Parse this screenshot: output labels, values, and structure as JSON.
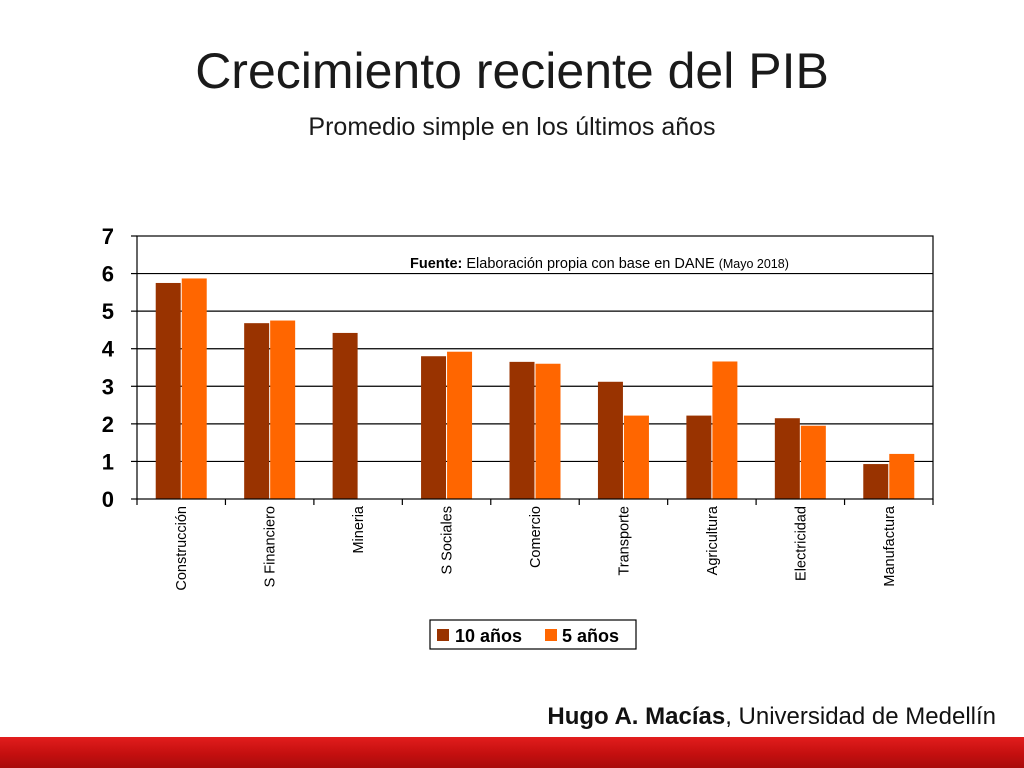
{
  "slide": {
    "title": "Crecimiento reciente del PIB",
    "subtitle": "Promedio simple en los últimos años",
    "footer_author": "Hugo A. Macías",
    "footer_affiliation": ", Universidad de Medellín"
  },
  "colors": {
    "series_10": "#993300",
    "series_5": "#ff6600",
    "bottom_bar": "#d61616"
  },
  "chart_data": {
    "type": "bar",
    "categories": [
      "Construcción",
      "S Financiero",
      "Mineria",
      "S Sociales",
      "Comercio",
      "Transporte",
      "Agricultura",
      "Electricidad",
      "Manufactura"
    ],
    "series": [
      {
        "name": "10 años",
        "values": [
          5.75,
          4.68,
          4.42,
          3.8,
          3.65,
          3.12,
          2.22,
          2.15,
          0.93
        ]
      },
      {
        "name": "5 años",
        "values": [
          5.87,
          4.75,
          null,
          3.92,
          3.6,
          2.22,
          3.66,
          1.95,
          1.2
        ]
      }
    ],
    "ylim": [
      0,
      7
    ],
    "yticks": [
      "0",
      "1",
      "2",
      "3",
      "4",
      "5",
      "6",
      "7"
    ],
    "grid": true,
    "legend": "bottom",
    "annotation_bold": "Fuente:",
    "annotation_text": " Elaboración propia con base en DANE ",
    "annotation_small": "(Mayo 2018)"
  }
}
